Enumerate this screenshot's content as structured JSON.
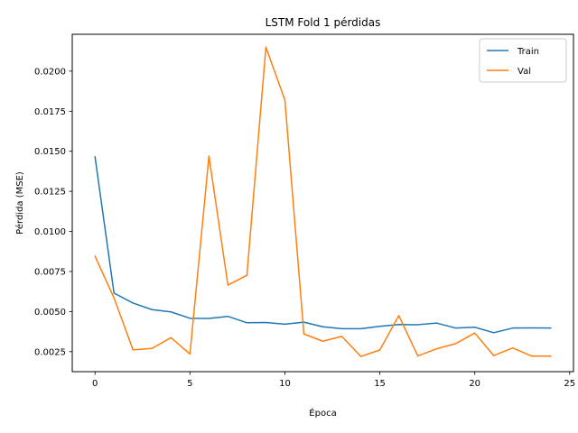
{
  "chart_data": {
    "type": "line",
    "title": "LSTM Fold 1 pérdidas",
    "xlabel": "Época",
    "ylabel": "Pérdida (MSE)",
    "xlim": [
      -1.2,
      25.2
    ],
    "ylim": [
      0.00125,
      0.0223
    ],
    "xticks": [
      0,
      5,
      10,
      15,
      20,
      25
    ],
    "xtick_labels": [
      "0",
      "5",
      "10",
      "15",
      "20",
      "25"
    ],
    "yticks": [
      0.0025,
      0.005,
      0.0075,
      0.01,
      0.0125,
      0.015,
      0.0175,
      0.02
    ],
    "ytick_labels": [
      "0.0025",
      "0.0050",
      "0.0075",
      "0.0100",
      "0.0125",
      "0.0150",
      "0.0175",
      "0.0200"
    ],
    "grid": false,
    "legend_position": "top-right",
    "x": [
      0,
      1,
      2,
      3,
      4,
      5,
      6,
      7,
      8,
      9,
      10,
      11,
      12,
      13,
      14,
      15,
      16,
      17,
      18,
      19,
      20,
      21,
      22,
      23,
      24
    ],
    "series": [
      {
        "name": "Train",
        "color": "#1f77b4",
        "values": [
          0.01465,
          0.00615,
          0.00553,
          0.00512,
          0.00498,
          0.00458,
          0.00457,
          0.0047,
          0.0043,
          0.00432,
          0.00421,
          0.00434,
          0.00405,
          0.00393,
          0.00393,
          0.00408,
          0.00419,
          0.00418,
          0.00428,
          0.00397,
          0.00402,
          0.00368,
          0.00397,
          0.00398,
          0.00397
        ]
      },
      {
        "name": "Val",
        "color": "#ff7f0e",
        "values": [
          0.00845,
          0.00585,
          0.00261,
          0.0027,
          0.00337,
          0.00235,
          0.0147,
          0.00665,
          0.00727,
          0.0215,
          0.0182,
          0.0036,
          0.00315,
          0.00345,
          0.0022,
          0.0026,
          0.00475,
          0.00223,
          0.00268,
          0.003,
          0.00366,
          0.00225,
          0.00273,
          0.00222,
          0.00222
        ]
      }
    ]
  }
}
